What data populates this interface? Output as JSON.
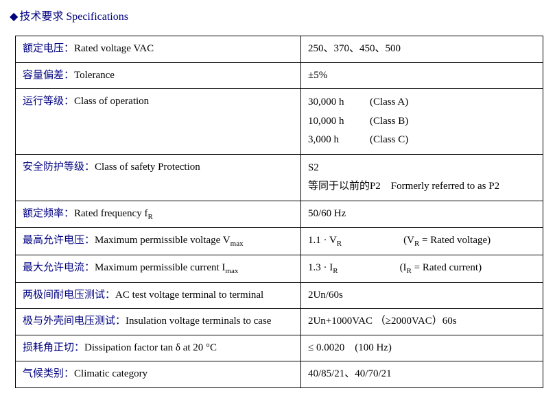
{
  "heading_zh": "技术要求",
  "heading_en": "Specifications",
  "rows": [
    {
      "label_zh": "额定电压：",
      "label_en": "Rated voltage VAC",
      "value_html": "250、370、450、500"
    },
    {
      "label_zh": "容量偏差：",
      "label_en": "Tolerance",
      "value_html": "±5%"
    },
    {
      "label_zh": "运行等级：",
      "label_en": "Class of operation",
      "value_lines": [
        {
          "a": "30,000 h",
          "b": "(Class A)"
        },
        {
          "a": "10,000 h",
          "b": "(Class B)"
        },
        {
          "a": "3,000 h",
          "b": "(Class C)"
        }
      ]
    },
    {
      "label_zh": "安全防护等级：",
      "label_en": "Class of safety Protection",
      "value_lines_plain": [
        "S2",
        "等同于以前的P2　Formerly referred to as P2"
      ]
    },
    {
      "label_zh": "额定频率：",
      "label_en": "Rated frequency f",
      "label_en_sub": "R",
      "value_html": "50/60 Hz"
    },
    {
      "label_zh": "最高允许电压：",
      "label_en": "Maximum permissible voltage V",
      "label_en_sub": "max",
      "value_pair": {
        "a": "1.1 · V",
        "a_sub": "R",
        "b": "(V",
        "b_sub": "R",
        "b_tail": " = Rated voltage)"
      }
    },
    {
      "label_zh": "最大允许电流：",
      "label_en": "Maximum permissible current I",
      "label_en_sub": "max",
      "value_pair": {
        "a": "1.3 · I",
        "a_sub": "R",
        "b": "(I",
        "b_sub": "R",
        "b_tail": " = Rated current)"
      }
    },
    {
      "label_zh": "两极间耐电压测试：",
      "label_en": "AC test voltage terminal to terminal",
      "value_html": "2Un/60s"
    },
    {
      "label_zh": "极与外壳间电压测试：",
      "label_en": "Insulation voltage terminals to case",
      "value_html": "2Un+1000VAC （≥2000VAC）60s"
    },
    {
      "label_zh": "损耗角正切：",
      "label_en": "Dissipation factor tan δ at 20 °C",
      "value_html": "≤ 0.0020　(100 Hz)"
    },
    {
      "label_zh": "气候类别：",
      "label_en": "Climatic category",
      "value_html": "40/85/21、40/70/21"
    }
  ]
}
